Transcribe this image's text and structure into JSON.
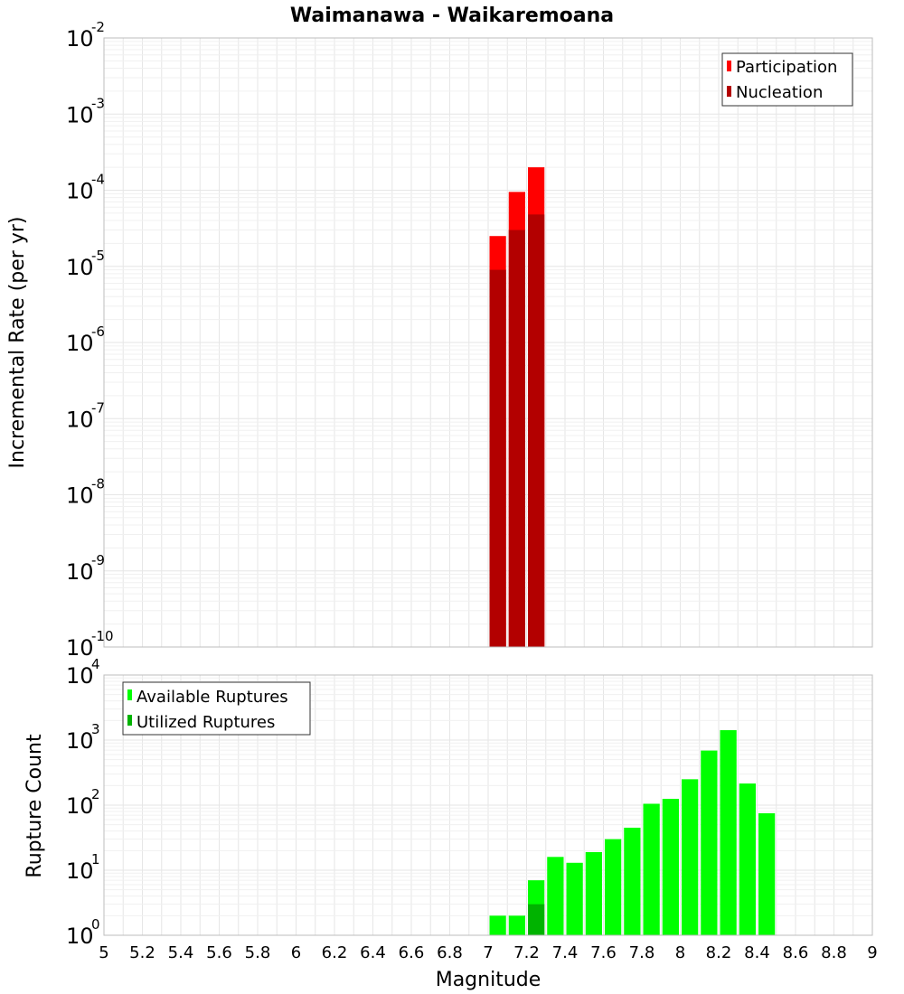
{
  "chart_data": [
    {
      "type": "bar",
      "title": "Waimanawa - Waikaremoana",
      "xlabel": "Magnitude",
      "ylabel": "Incremental Rate (per yr)",
      "yscale": "log",
      "ylim_exp": [
        -10,
        -2
      ],
      "xlim": [
        5,
        9
      ],
      "bin_width": 0.1,
      "grid": true,
      "legend_position": "top-right",
      "series": [
        {
          "name": "Participation",
          "color": "#ff0000",
          "x": [
            7.05,
            7.15,
            7.25
          ],
          "values": [
            2.5e-05,
            9.5e-05,
            0.0002
          ]
        },
        {
          "name": "Nucleation",
          "color": "#b30000",
          "x": [
            7.05,
            7.15,
            7.25
          ],
          "values": [
            9e-06,
            3e-05,
            4.8e-05
          ]
        }
      ]
    },
    {
      "type": "bar",
      "xlabel": "Magnitude",
      "ylabel": "Rupture Count",
      "yscale": "log",
      "ylim_exp": [
        0,
        4
      ],
      "xlim": [
        5,
        9
      ],
      "xticks": [
        "5",
        "5.2",
        "5.4",
        "5.6",
        "5.8",
        "6",
        "6.2",
        "6.4",
        "6.6",
        "6.8",
        "7",
        "7.2",
        "7.4",
        "7.6",
        "7.8",
        "8",
        "8.2",
        "8.4",
        "8.6",
        "8.8",
        "9"
      ],
      "bin_width": 0.1,
      "grid": true,
      "legend_position": "top-left",
      "series": [
        {
          "name": "Available Ruptures",
          "color": "#00ff00",
          "x": [
            6.65,
            7.05,
            7.15,
            7.25,
            7.35,
            7.45,
            7.55,
            7.65,
            7.75,
            7.85,
            7.95,
            8.05,
            8.15,
            8.25,
            8.35,
            8.45
          ],
          "values": [
            1,
            2,
            2,
            7,
            16,
            13,
            19,
            30,
            45,
            105,
            125,
            250,
            690,
            1420,
            215,
            75
          ]
        },
        {
          "name": "Utilized Ruptures",
          "color": "#00b300",
          "x": [
            7.05,
            7.15,
            7.25
          ],
          "values": [
            1,
            1,
            3
          ]
        }
      ]
    }
  ]
}
